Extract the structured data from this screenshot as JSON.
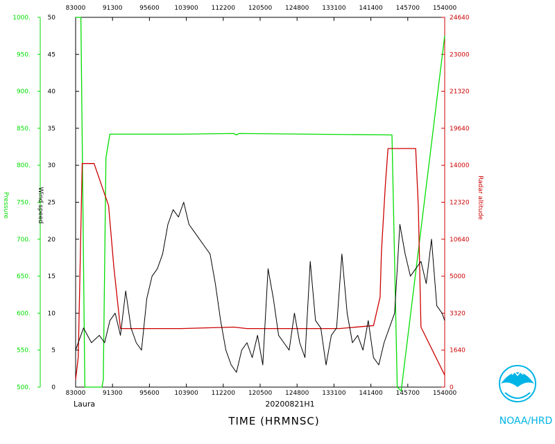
{
  "chart_data": {
    "type": "line",
    "storm_label": "Laura",
    "flight_id": "20200821H1",
    "xlabel": "TIME (HRMNSC)",
    "organization": "NOAA/HRD",
    "x_ticks": [
      "83000",
      "91300",
      "95600",
      "103900",
      "112200",
      "120500",
      "124800",
      "133100",
      "141400",
      "145700",
      "154000"
    ],
    "y_left_pressure": {
      "label": "Pressure",
      "color": "#00dd00",
      "range": [
        500,
        1000
      ],
      "ticks": [
        "500.",
        "550.",
        "600.",
        "650.",
        "700.",
        "750.",
        "800.",
        "850.",
        "900.",
        "950.",
        "1000."
      ]
    },
    "y_left_wind": {
      "label": "Wind speed",
      "color": "#000000",
      "range": [
        0,
        50
      ],
      "ticks": [
        "0",
        "5",
        "10",
        "15",
        "20",
        "25",
        "30",
        "35",
        "40",
        "45",
        "50"
      ]
    },
    "y_right_altitude": {
      "label": "Radar altitude",
      "color": "#cc0000",
      "range": [
        0,
        24640
      ],
      "ticks": [
        "0",
        "1640",
        "3320",
        "5000",
        "10640",
        "12320",
        "14000",
        "19640",
        "21320",
        "23000",
        "24640"
      ]
    },
    "series": [
      {
        "name": "Pressure",
        "color": "#00dd00",
        "axis": "pressure",
        "x": [
          0.0,
          0.2,
          0.35,
          1.0,
          1.05,
          1.15,
          1.3,
          4.0,
          6.0,
          6.1,
          6.2,
          12.0,
          12.2,
          12.35,
          14.0
        ],
        "y": [
          1000,
          1000,
          500,
          500,
          510,
          810,
          842,
          842,
          843,
          841,
          843,
          841,
          500,
          495,
          975
        ]
      },
      {
        "name": "Radar altitude",
        "color": "#cc0000",
        "axis": "altitude",
        "x": [
          0.0,
          0.1,
          0.25,
          0.7,
          1.25,
          1.45,
          1.7,
          1.75,
          4.0,
          6.0,
          6.5,
          10.0,
          11.3,
          11.55,
          11.6,
          11.75,
          11.85,
          12.9,
          13.0,
          13.1,
          14.0
        ],
        "y": [
          500,
          2000,
          14900,
          14900,
          12100,
          8000,
          3900,
          3900,
          3900,
          4000,
          3900,
          3900,
          4100,
          6000,
          9000,
          13500,
          15900,
          15900,
          12000,
          4000,
          800
        ]
      },
      {
        "name": "Wind speed",
        "color": "#000000",
        "axis": "wind",
        "x": [
          0.0,
          0.3,
          0.6,
          0.9,
          1.1,
          1.3,
          1.5,
          1.7,
          1.9,
          2.1,
          2.3,
          2.5,
          2.7,
          2.9,
          3.1,
          3.3,
          3.5,
          3.7,
          3.9,
          4.1,
          4.3,
          4.5,
          4.7,
          4.9,
          5.1,
          5.3,
          5.5,
          5.7,
          5.9,
          6.1,
          6.3,
          6.5,
          6.7,
          6.9,
          7.1,
          7.3,
          7.5,
          7.7,
          7.9,
          8.1,
          8.3,
          8.5,
          8.7,
          8.9,
          9.1,
          9.3,
          9.5,
          9.7,
          9.9,
          10.1,
          10.3,
          10.5,
          10.7,
          10.9,
          11.1,
          11.3,
          11.5,
          11.7,
          11.9,
          12.1,
          12.3,
          12.5,
          12.7,
          12.9,
          13.1,
          13.3,
          13.5,
          13.7,
          13.9,
          14.0
        ],
        "y": [
          5,
          8,
          6,
          7,
          6,
          9,
          10,
          7,
          13,
          8,
          6,
          5,
          12,
          15,
          16,
          18,
          22,
          24,
          23,
          25,
          22,
          21,
          20,
          19,
          18,
          14,
          9,
          5,
          3,
          2,
          5,
          6,
          4,
          7,
          3,
          16,
          12,
          7,
          6,
          5,
          10,
          6,
          4,
          17,
          9,
          8,
          3,
          7,
          8,
          18,
          10,
          6,
          7,
          5,
          9,
          4,
          3,
          6,
          8,
          10,
          22,
          18,
          15,
          16,
          17,
          14,
          20,
          11,
          10,
          9
        ]
      }
    ]
  }
}
